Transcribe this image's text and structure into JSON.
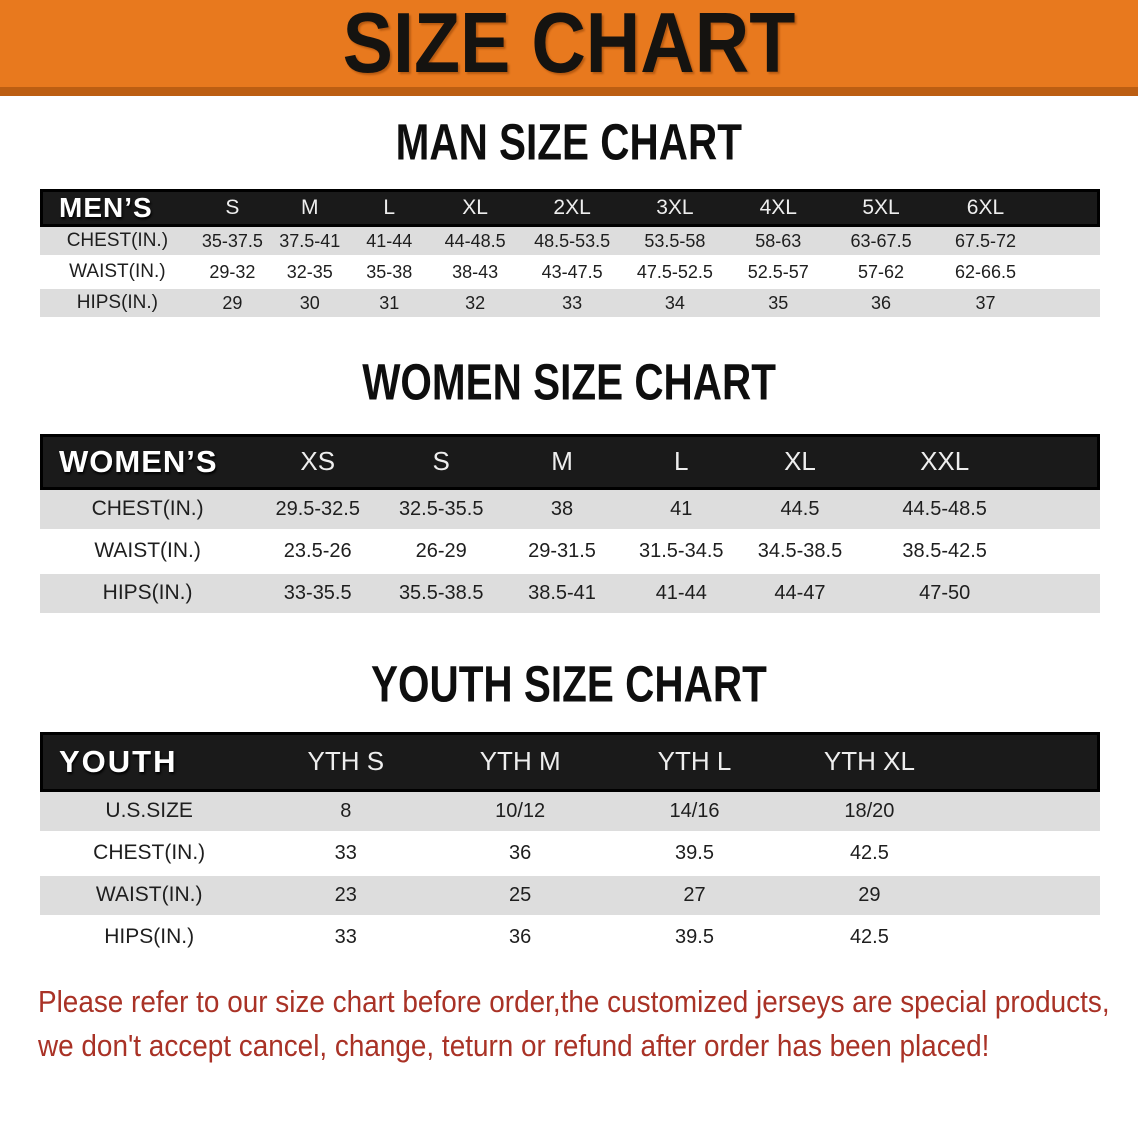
{
  "banner": {
    "title": "SIZE CHART"
  },
  "colors": {
    "banner_bg": "#E8791E",
    "banner_edge": "#BC5E12",
    "band_bg": "#1A1A1A",
    "stripe": "#DDDDDD",
    "note_red": "#A93226"
  },
  "sections": [
    {
      "id": "men",
      "heading": "MAN SIZE CHART",
      "label": "MEN’S",
      "columns": [
        "S",
        "M",
        "L",
        "XL",
        "2XL",
        "3XL",
        "4XL",
        "5XL",
        "6XL"
      ],
      "rows": [
        {
          "label": "CHEST(IN.)",
          "values": [
            "35-37.5",
            "37.5-41",
            "41-44",
            "44-48.5",
            "48.5-53.5",
            "53.5-58",
            "58-63",
            "63-67.5",
            "67.5-72"
          ]
        },
        {
          "label": "WAIST(IN.)",
          "values": [
            "29-32",
            "32-35",
            "35-38",
            "38-43",
            "43-47.5",
            "47.5-52.5",
            "52.5-57",
            "57-62",
            "62-66.5"
          ]
        },
        {
          "label": "HIPS(IN.)",
          "values": [
            "29",
            "30",
            "31",
            "32",
            "33",
            "34",
            "35",
            "36",
            "37"
          ]
        }
      ]
    },
    {
      "id": "women",
      "heading": "WOMEN SIZE CHART",
      "label": "WOMEN’S",
      "columns": [
        "XS",
        "S",
        "M",
        "L",
        "XL",
        "XXL"
      ],
      "rows": [
        {
          "label": "CHEST(IN.)",
          "values": [
            "29.5-32.5",
            "32.5-35.5",
            "38",
            "41",
            "44.5",
            "44.5-48.5"
          ]
        },
        {
          "label": "WAIST(IN.)",
          "values": [
            "23.5-26",
            "26-29",
            "29-31.5",
            "31.5-34.5",
            "34.5-38.5",
            "38.5-42.5"
          ]
        },
        {
          "label": "HIPS(IN.)",
          "values": [
            "33-35.5",
            "35.5-38.5",
            "38.5-41",
            "41-44",
            "44-47",
            "47-50"
          ]
        }
      ]
    },
    {
      "id": "youth",
      "heading": "YOUTH SIZE CHART",
      "label": "YOUTH",
      "columns": [
        "YTH S",
        "YTH M",
        "YTH L",
        "YTH XL"
      ],
      "rows": [
        {
          "label": "U.S.SIZE",
          "values": [
            "8",
            "10/12",
            "14/16",
            "18/20"
          ]
        },
        {
          "label": "CHEST(IN.)",
          "values": [
            "33",
            "36",
            "39.5",
            "42.5"
          ]
        },
        {
          "label": "WAIST(IN.)",
          "values": [
            "23",
            "25",
            "27",
            "29"
          ]
        },
        {
          "label": "HIPS(IN.)",
          "values": [
            "33",
            "36",
            "39.5",
            "42.5"
          ]
        }
      ]
    }
  ],
  "footer": {
    "line1": "Please refer to our size chart before order,the customized jerseys are special products,",
    "line2": "we don't accept cancel, change, teturn or refund after order has been placed!"
  }
}
